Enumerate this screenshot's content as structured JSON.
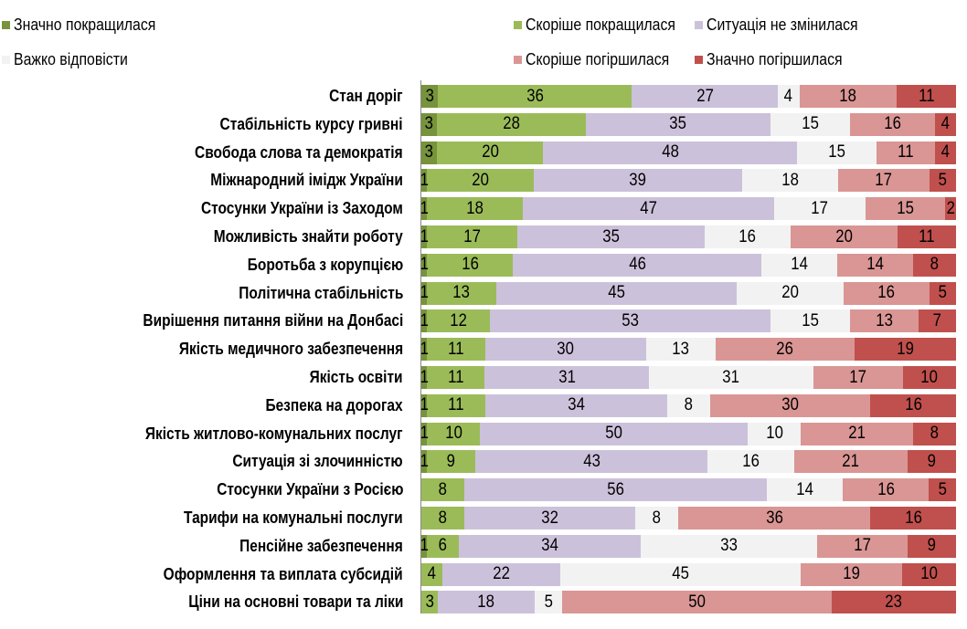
{
  "chart_data": {
    "type": "bar",
    "orientation": "horizontal",
    "stacked": true,
    "legend_position": "top",
    "grid": false,
    "series": [
      {
        "name": "Значно покращилася",
        "color": "#77933c",
        "values": [
          3,
          3,
          3,
          1,
          1,
          1,
          1,
          1,
          1,
          1,
          1,
          1,
          1,
          1,
          0,
          0,
          1,
          0,
          0
        ]
      },
      {
        "name": "Скоріше покращилася",
        "color": "#9bbb59",
        "values": [
          36,
          28,
          20,
          20,
          18,
          17,
          16,
          13,
          12,
          11,
          11,
          11,
          10,
          9,
          8,
          8,
          6,
          4,
          3
        ]
      },
      {
        "name": "Ситуація не змінилася",
        "color": "#ccc1da",
        "values": [
          27,
          35,
          48,
          39,
          47,
          35,
          46,
          45,
          53,
          30,
          31,
          34,
          50,
          43,
          56,
          32,
          34,
          22,
          18
        ]
      },
      {
        "name": "Важко відповісти",
        "color": "#f2f2f2",
        "values": [
          4,
          15,
          15,
          18,
          17,
          16,
          14,
          20,
          15,
          13,
          31,
          8,
          10,
          16,
          14,
          8,
          33,
          45,
          5
        ]
      },
      {
        "name": "Скоріше погіршилася",
        "color": "#d99694",
        "values": [
          18,
          16,
          11,
          17,
          15,
          20,
          14,
          16,
          13,
          26,
          17,
          30,
          21,
          21,
          16,
          36,
          17,
          19,
          50
        ]
      },
      {
        "name": "Значно погіршилася",
        "color": "#c0504d",
        "values": [
          11,
          4,
          4,
          5,
          2,
          11,
          8,
          5,
          7,
          19,
          10,
          16,
          8,
          9,
          5,
          16,
          9,
          10,
          23
        ]
      }
    ],
    "categories": [
      "Стан доріг",
      "Стабільність курсу гривні",
      "Свобода слова та демократія",
      "Міжнародний імідж України",
      "Стосунки України із Заходом",
      "Можливість знайти роботу",
      "Боротьба з корупцією",
      "Політична стабільність",
      "Вирішення питання війни на Донбасі",
      "Якість медичного забезпечення",
      "Якість освіти",
      "Безпека на дорогах",
      "Якість житлово-комунальних послуг",
      "Ситуація зі злочинністю",
      "Стосунки України з Росією",
      "Тарифи на комунальні послуги",
      "Пенсійне забезпечення",
      "Оформлення та виплата субсидій",
      "Ціни на основні товари та ліки"
    ]
  }
}
